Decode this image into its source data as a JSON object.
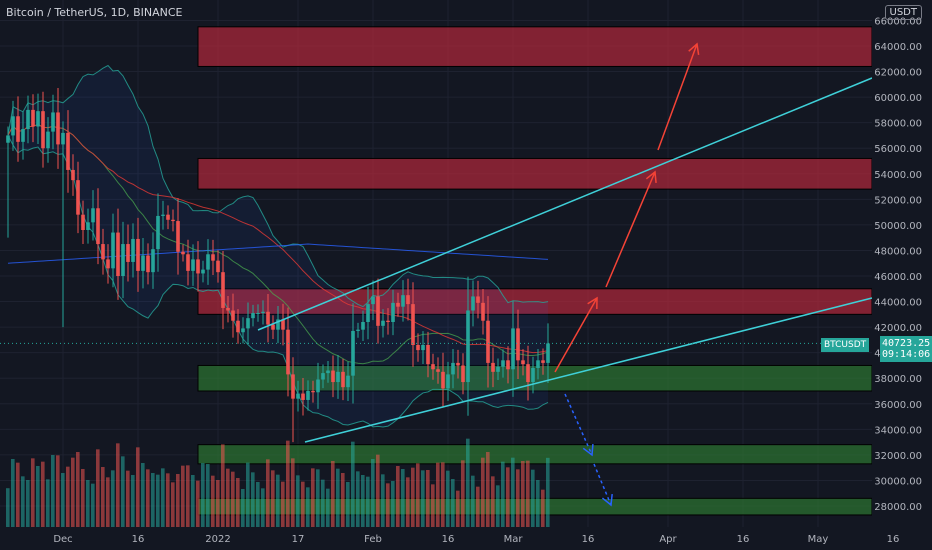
{
  "title": "Bitcoin / TetherUS, 1D, BINANCE",
  "currency": "USDT",
  "symbol": "BTCUSDT",
  "last_price": "40723.25",
  "countdown": "09:14:06",
  "colors": {
    "background": "#131722",
    "up": "#26a69a",
    "down": "#ef5350",
    "resistance_zone": "#b2283a",
    "support_zone": "#2e7d32",
    "trendline": "#3fd0d8",
    "arrow_up": "#f44336",
    "arrow_down": "#2962ff"
  },
  "chart_data": {
    "type": "candlestick",
    "y_axis": {
      "min": 26000,
      "max": 66500,
      "ticks": [
        28000,
        30000,
        32000,
        34000,
        36000,
        38000,
        40000,
        42000,
        44000,
        46000,
        48000,
        50000,
        52000,
        54000,
        56000,
        58000,
        60000,
        62000,
        64000,
        66000
      ],
      "tick_labels": [
        "28000.00",
        "30000.00",
        "32000.00",
        "34000.00",
        "36000.00",
        "38000.00",
        "40000.00",
        "42000.00",
        "44000.00",
        "46000.00",
        "48000.00",
        "50000.00",
        "52000.00",
        "54000.00",
        "56000.00",
        "58000.00",
        "60000.00",
        "62000.00",
        "64000.00",
        "66000.00"
      ]
    },
    "x_axis": {
      "start": "2021-11-20",
      "ticks": [
        {
          "label": "Dec",
          "date": "2021-12-01"
        },
        {
          "label": "16",
          "date": "2021-12-16"
        },
        {
          "label": "2022",
          "date": "2022-01-01"
        },
        {
          "label": "17",
          "date": "2022-01-17"
        },
        {
          "label": "Feb",
          "date": "2022-02-01"
        },
        {
          "label": "16",
          "date": "2022-02-16"
        },
        {
          "label": "Mar",
          "date": "2022-03-01"
        },
        {
          "label": "16",
          "date": "2022-03-16"
        },
        {
          "label": "Apr",
          "date": "2022-04-01"
        },
        {
          "label": "16",
          "date": "2022-04-16"
        },
        {
          "label": "May",
          "date": "2022-05-01"
        },
        {
          "label": "16",
          "date": "2022-05-16"
        }
      ]
    },
    "closes": [
      57000,
      58500,
      56500,
      57500,
      59000,
      57700,
      58900,
      56000,
      57300,
      58800,
      56300,
      57200,
      54300,
      53500,
      50800,
      49600,
      50200,
      51300,
      48500,
      47300,
      46600,
      49400,
      46000,
      48500,
      47100,
      48900,
      46400,
      47600,
      46300,
      48100,
      50700,
      50800,
      50400,
      50300,
      47900,
      47700,
      46400,
      47300,
      46200,
      46500,
      47700,
      47200,
      46300,
      43500,
      43300,
      42500,
      41600,
      41900,
      42700,
      43100,
      43100,
      43200,
      42200,
      41800,
      42600,
      41800,
      38300,
      36400,
      36800,
      36300,
      37000,
      36900,
      37900,
      38400,
      38600,
      37700,
      38500,
      37300,
      38200,
      41700,
      41800,
      42400,
      43800,
      44400,
      42100,
      42500,
      42400,
      43900,
      43600,
      44500,
      43800,
      40600,
      40200,
      40600,
      39100,
      38700,
      38500,
      37200,
      38300,
      39200,
      39000,
      37700,
      43300,
      44400,
      43900,
      42500,
      39200,
      38500,
      38900,
      39400,
      38700,
      41900,
      39400,
      39100,
      37700,
      38800,
      39400,
      39200,
      40723
    ]
  },
  "zones": [
    {
      "kind": "resistance",
      "from": 62400,
      "to": 65500
    },
    {
      "kind": "resistance",
      "from": 52800,
      "to": 55200
    },
    {
      "kind": "resistance",
      "from": 43000,
      "to": 45000
    },
    {
      "kind": "support",
      "from": 37000,
      "to": 39000
    },
    {
      "kind": "support",
      "from": 31300,
      "to": 32800
    },
    {
      "kind": "support",
      "from": 27300,
      "to": 28600
    }
  ]
}
